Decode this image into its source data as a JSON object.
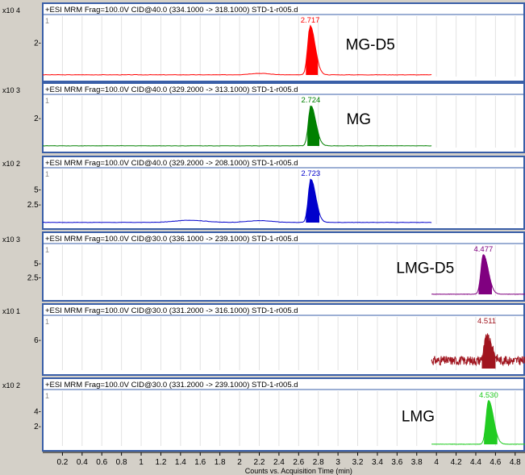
{
  "chart_data": {
    "type": "line",
    "xlabel": "Counts vs. Acquisition Time (min)",
    "x_ticks": [
      "0.2",
      "0.4",
      "0.6",
      "0.8",
      "1",
      "1.2",
      "1.4",
      "1.6",
      "1.8",
      "2",
      "2.2",
      "2.4",
      "2.6",
      "2.8",
      "3",
      "3.2",
      "3.4",
      "3.6",
      "3.8",
      "4",
      "4.2",
      "4.4",
      "4.6",
      "4.8"
    ],
    "xlim": [
      0.0,
      4.9
    ],
    "panels": [
      {
        "header": "+ESI MRM Frag=100.0V CID@40.0 (334.1000 -> 318.1000) STD-1-r005.d",
        "scale": "x10 4",
        "y_ticks": [
          "2-"
        ],
        "label": "MG-D5",
        "peak_label": "2.717",
        "peak_rt": 2.717,
        "color": "#ff0000",
        "line_end": 3.95,
        "noisy": false,
        "bumps": [
          {
            "x": 2.2,
            "h": 0.03,
            "w": 0.2
          }
        ]
      },
      {
        "header": "+ESI MRM Frag=100.0V CID@40.0 (329.2000 -> 313.1000) STD-1-r005.d",
        "scale": "x10 3",
        "y_ticks": [
          "2-"
        ],
        "label": "MG",
        "peak_label": "2.724",
        "peak_rt": 2.724,
        "color": "#008000",
        "line_end": 3.95,
        "noisy": false,
        "bumps": []
      },
      {
        "header": "+ESI MRM Frag=100.0V CID@40.0 (329.2000 -> 208.1000) STD-1-r005.d",
        "scale": "x10 2",
        "y_ticks": [
          "5-",
          "2.5-"
        ],
        "label": "",
        "peak_label": "2.723",
        "peak_rt": 2.723,
        "color": "#0000cc",
        "line_end": 3.95,
        "noisy": false,
        "bumps": [
          {
            "x": 1.5,
            "h": 0.05,
            "w": 0.3
          },
          {
            "x": 2.2,
            "h": 0.04,
            "w": 0.25
          }
        ]
      },
      {
        "header": "+ESI MRM Frag=100.0V CID@30.0 (336.1000 -> 239.1000) STD-1-r005.d",
        "scale": "x10 3",
        "y_ticks": [
          "5-",
          "2.5-"
        ],
        "label": "LMG-D5",
        "peak_label": "4.477",
        "peak_rt": 4.477,
        "color": "#800080",
        "line_end": 4.9,
        "line_start": 3.95,
        "noisy": false,
        "bumps": []
      },
      {
        "header": "+ESI MRM Frag=100.0V CID@30.0 (331.2000 -> 316.1000) STD-1-r005.d",
        "scale": "x10 1",
        "y_ticks": [
          "6-"
        ],
        "label": "",
        "peak_label": "4.511",
        "peak_rt": 4.511,
        "color": "#a0141e",
        "line_end": 4.9,
        "line_start": 3.95,
        "noisy": true,
        "bumps": []
      },
      {
        "header": "+ESI MRM Frag=100.0V CID@30.0 (331.2000 -> 239.1000) STD-1-r005.d",
        "scale": "x10 2",
        "y_ticks": [
          "4-",
          "2-"
        ],
        "label": "LMG",
        "peak_label": "4.530",
        "peak_rt": 4.53,
        "color": "#22cc22",
        "line_end": 4.9,
        "line_start": 3.95,
        "noisy": false,
        "bumps": []
      }
    ]
  }
}
